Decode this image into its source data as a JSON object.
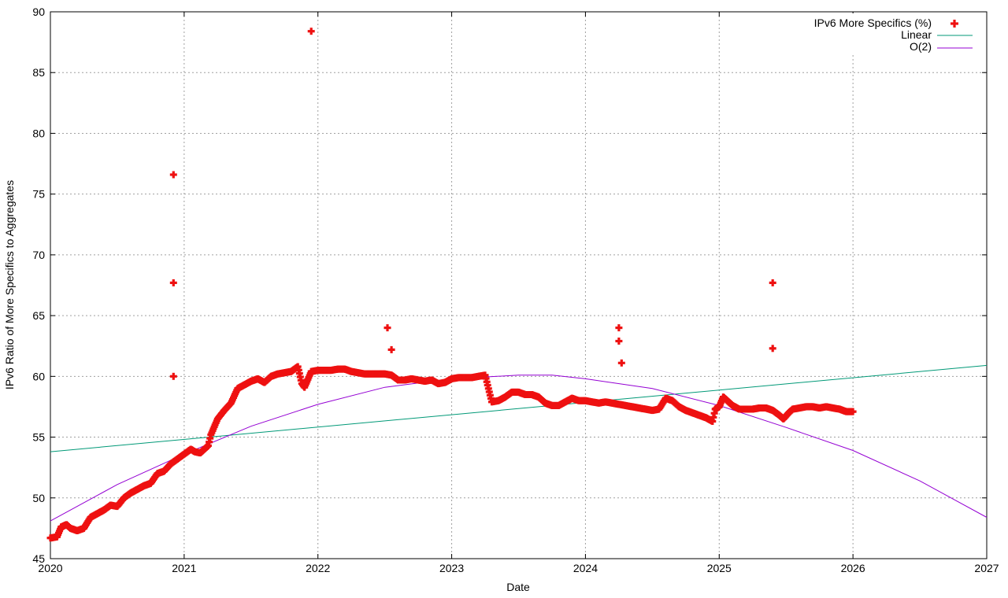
{
  "chart_data": {
    "type": "scatter",
    "title": "",
    "xlabel": "Date",
    "ylabel": "IPv6 Ratio of More Specifics to Aggregates",
    "xlim": [
      2020,
      2027
    ],
    "ylim": [
      45,
      90
    ],
    "x_ticks": [
      "2020",
      "2021",
      "2022",
      "2023",
      "2024",
      "2025",
      "2026",
      "2027"
    ],
    "y_ticks": [
      "45",
      "50",
      "55",
      "60",
      "65",
      "70",
      "75",
      "80",
      "85",
      "90"
    ],
    "grid": true,
    "legend_position": "top-right",
    "colors": {
      "points": "#ee1111",
      "linear": "#009977",
      "quadratic": "#9400d3"
    },
    "series": [
      {
        "name": "IPv6 More Specifics (%)",
        "kind": "points",
        "anchors": [
          [
            2020.0,
            46.7
          ],
          [
            2020.05,
            46.8
          ],
          [
            2020.08,
            47.6
          ],
          [
            2020.12,
            47.8
          ],
          [
            2020.15,
            47.5
          ],
          [
            2020.2,
            47.3
          ],
          [
            2020.25,
            47.5
          ],
          [
            2020.3,
            48.4
          ],
          [
            2020.35,
            48.7
          ],
          [
            2020.4,
            49.0
          ],
          [
            2020.45,
            49.4
          ],
          [
            2020.5,
            49.3
          ],
          [
            2020.55,
            50.0
          ],
          [
            2020.6,
            50.4
          ],
          [
            2020.65,
            50.7
          ],
          [
            2020.7,
            51.0
          ],
          [
            2020.75,
            51.2
          ],
          [
            2020.8,
            52.0
          ],
          [
            2020.85,
            52.2
          ],
          [
            2020.9,
            52.8
          ],
          [
            2020.95,
            53.2
          ],
          [
            2021.0,
            53.6
          ],
          [
            2021.05,
            54.0
          ],
          [
            2021.08,
            53.8
          ],
          [
            2021.12,
            53.7
          ],
          [
            2021.18,
            54.3
          ],
          [
            2021.2,
            55.2
          ],
          [
            2021.25,
            56.5
          ],
          [
            2021.3,
            57.2
          ],
          [
            2021.35,
            57.8
          ],
          [
            2021.4,
            59.0
          ],
          [
            2021.45,
            59.3
          ],
          [
            2021.5,
            59.6
          ],
          [
            2021.55,
            59.8
          ],
          [
            2021.6,
            59.5
          ],
          [
            2021.65,
            60.0
          ],
          [
            2021.7,
            60.2
          ],
          [
            2021.75,
            60.3
          ],
          [
            2021.8,
            60.4
          ],
          [
            2021.85,
            60.8
          ],
          [
            2021.88,
            59.4
          ],
          [
            2021.9,
            59.1
          ],
          [
            2021.95,
            60.4
          ],
          [
            2022.0,
            60.5
          ],
          [
            2022.05,
            60.5
          ],
          [
            2022.1,
            60.5
          ],
          [
            2022.15,
            60.6
          ],
          [
            2022.2,
            60.6
          ],
          [
            2022.25,
            60.4
          ],
          [
            2022.3,
            60.3
          ],
          [
            2022.35,
            60.2
          ],
          [
            2022.4,
            60.2
          ],
          [
            2022.45,
            60.2
          ],
          [
            2022.5,
            60.2
          ],
          [
            2022.55,
            60.1
          ],
          [
            2022.6,
            59.7
          ],
          [
            2022.65,
            59.7
          ],
          [
            2022.7,
            59.8
          ],
          [
            2022.75,
            59.7
          ],
          [
            2022.8,
            59.6
          ],
          [
            2022.85,
            59.7
          ],
          [
            2022.9,
            59.4
          ],
          [
            2022.95,
            59.5
          ],
          [
            2023.0,
            59.8
          ],
          [
            2023.05,
            59.9
          ],
          [
            2023.1,
            59.9
          ],
          [
            2023.15,
            59.9
          ],
          [
            2023.2,
            60.0
          ],
          [
            2023.25,
            60.1
          ],
          [
            2023.3,
            57.9
          ],
          [
            2023.35,
            58.0
          ],
          [
            2023.4,
            58.3
          ],
          [
            2023.45,
            58.7
          ],
          [
            2023.5,
            58.7
          ],
          [
            2023.55,
            58.5
          ],
          [
            2023.6,
            58.5
          ],
          [
            2023.65,
            58.3
          ],
          [
            2023.7,
            57.8
          ],
          [
            2023.75,
            57.6
          ],
          [
            2023.8,
            57.6
          ],
          [
            2023.85,
            57.9
          ],
          [
            2023.9,
            58.2
          ],
          [
            2023.95,
            58.0
          ],
          [
            2024.0,
            58.0
          ],
          [
            2024.05,
            57.9
          ],
          [
            2024.1,
            57.8
          ],
          [
            2024.15,
            57.9
          ],
          [
            2024.2,
            57.8
          ],
          [
            2024.25,
            57.7
          ],
          [
            2024.3,
            57.6
          ],
          [
            2024.35,
            57.5
          ],
          [
            2024.4,
            57.4
          ],
          [
            2024.45,
            57.3
          ],
          [
            2024.5,
            57.2
          ],
          [
            2024.55,
            57.3
          ],
          [
            2024.6,
            58.2
          ],
          [
            2024.65,
            58.0
          ],
          [
            2024.7,
            57.5
          ],
          [
            2024.75,
            57.2
          ],
          [
            2024.8,
            57.0
          ],
          [
            2024.85,
            56.8
          ],
          [
            2024.9,
            56.6
          ],
          [
            2024.95,
            56.3
          ],
          [
            2024.97,
            57.3
          ],
          [
            2025.0,
            57.5
          ],
          [
            2025.03,
            58.3
          ],
          [
            2025.07,
            57.9
          ],
          [
            2025.1,
            57.6
          ],
          [
            2025.15,
            57.3
          ],
          [
            2025.2,
            57.3
          ],
          [
            2025.25,
            57.3
          ],
          [
            2025.3,
            57.4
          ],
          [
            2025.35,
            57.4
          ],
          [
            2025.4,
            57.2
          ],
          [
            2025.45,
            56.8
          ],
          [
            2025.48,
            56.5
          ],
          [
            2025.52,
            57.0
          ],
          [
            2025.55,
            57.3
          ],
          [
            2025.6,
            57.4
          ],
          [
            2025.65,
            57.5
          ],
          [
            2025.7,
            57.5
          ],
          [
            2025.75,
            57.4
          ],
          [
            2025.8,
            57.5
          ],
          [
            2025.85,
            57.4
          ],
          [
            2025.9,
            57.3
          ],
          [
            2025.95,
            57.1
          ],
          [
            2026.0,
            57.1
          ]
        ],
        "outliers": [
          [
            2020.92,
            76.6
          ],
          [
            2020.92,
            67.7
          ],
          [
            2020.92,
            60.0
          ],
          [
            2021.95,
            88.4
          ],
          [
            2022.52,
            64.0
          ],
          [
            2022.55,
            62.2
          ],
          [
            2024.25,
            64.0
          ],
          [
            2024.25,
            62.9
          ],
          [
            2024.27,
            61.1
          ],
          [
            2025.4,
            67.7
          ],
          [
            2025.4,
            62.3
          ]
        ]
      },
      {
        "name": "Linear",
        "kind": "line",
        "x": [
          2020,
          2027
        ],
        "y": [
          53.8,
          60.9
        ]
      },
      {
        "name": "O(2)",
        "kind": "line",
        "x": [
          2020.0,
          2020.5,
          2021.0,
          2021.5,
          2022.0,
          2022.5,
          2023.0,
          2023.5,
          2023.75,
          2024.0,
          2024.5,
          2025.0,
          2025.5,
          2026.0,
          2026.5,
          2027.0
        ],
        "y": [
          48.1,
          51.1,
          53.6,
          55.9,
          57.7,
          59.1,
          59.8,
          60.1,
          60.1,
          59.8,
          59.0,
          57.6,
          55.8,
          53.9,
          51.4,
          48.4
        ]
      }
    ]
  }
}
